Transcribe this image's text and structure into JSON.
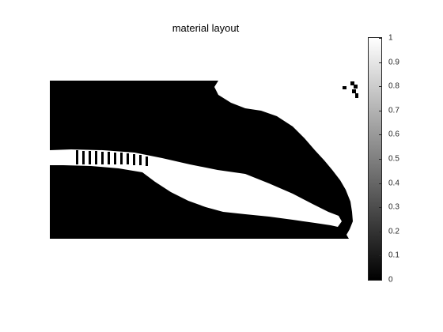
{
  "chart_data": {
    "type": "heatmap",
    "title": "material layout",
    "xlabel": "",
    "ylabel": "",
    "axes_visible": false,
    "colormap": "gray",
    "colors": {
      "solid": "#000000",
      "void": "#ffffff"
    },
    "clim": [
      0,
      1
    ],
    "colorbar": {
      "location": "right",
      "ticks": [
        "0",
        "0.1",
        "0.2",
        "0.3",
        "0.4",
        "0.5",
        "0.6",
        "0.7",
        "0.8",
        "0.9",
        "1"
      ]
    }
  }
}
